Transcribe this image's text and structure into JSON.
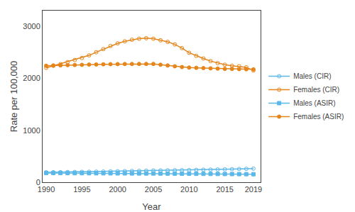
{
  "chart_data": {
    "type": "line",
    "xlabel": "Year",
    "ylabel": "Rate per 100,000",
    "x": [
      1990,
      1991,
      1992,
      1993,
      1994,
      1995,
      1996,
      1997,
      1998,
      1999,
      2000,
      2001,
      2002,
      2003,
      2004,
      2005,
      2006,
      2007,
      2008,
      2009,
      2010,
      2011,
      2012,
      2013,
      2014,
      2015,
      2016,
      2017,
      2018,
      2019
    ],
    "series": [
      {
        "name": "Males (CIR)",
        "color": "#5BB8E8",
        "marker": "circle-open",
        "values": [
          190,
          192,
          193,
          195,
          197,
          199,
          201,
          203,
          205,
          208,
          211,
          213,
          216,
          219,
          222,
          225,
          227,
          229,
          231,
          232,
          234,
          237,
          240,
          243,
          246,
          248,
          251,
          254,
          258,
          262
        ]
      },
      {
        "name": "Females (CIR)",
        "color": "#E5851A",
        "marker": "circle-open",
        "values": [
          2200,
          2240,
          2270,
          2310,
          2350,
          2390,
          2440,
          2500,
          2560,
          2620,
          2670,
          2710,
          2740,
          2760,
          2770,
          2760,
          2730,
          2700,
          2650,
          2580,
          2490,
          2430,
          2380,
          2330,
          2290,
          2260,
          2240,
          2230,
          2210,
          2150
        ]
      },
      {
        "name": "Males (ASIR)",
        "color": "#5BB8E8",
        "marker": "square",
        "values": [
          178,
          177,
          176,
          175,
          174,
          174,
          173,
          172,
          172,
          171,
          170,
          170,
          169,
          169,
          168,
          168,
          167,
          166,
          165,
          164,
          163,
          162,
          161,
          160,
          159,
          158,
          157,
          156,
          155,
          154
        ]
      },
      {
        "name": "Females (ASIR)",
        "color": "#E5851A",
        "marker": "circle",
        "values": [
          2240,
          2245,
          2248,
          2252,
          2255,
          2258,
          2262,
          2265,
          2268,
          2270,
          2272,
          2273,
          2274,
          2275,
          2275,
          2275,
          2260,
          2245,
          2230,
          2215,
          2205,
          2200,
          2195,
          2190,
          2185,
          2180,
          2178,
          2175,
          2173,
          2170
        ]
      }
    ],
    "xlim": [
      1989.5,
      2020
    ],
    "xticks": [
      1990,
      1995,
      2000,
      2005,
      2010,
      2015,
      2019
    ],
    "ylim": [
      0,
      3300
    ],
    "yticks": [
      0,
      1000,
      2000,
      3000
    ],
    "grid": false,
    "legend": "right"
  }
}
